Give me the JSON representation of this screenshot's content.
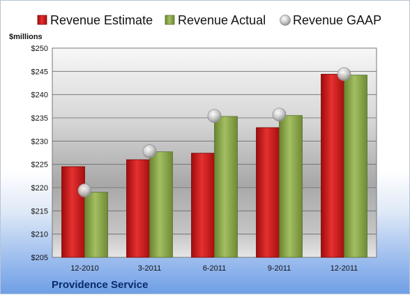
{
  "chart_data": {
    "type": "bar",
    "title": "",
    "ylabel": "$millions",
    "company": "Providence Service",
    "categories": [
      "12-2010",
      "3-2011",
      "6-2011",
      "9-2011",
      "12-2011"
    ],
    "ylim": [
      205,
      250
    ],
    "yticks": [
      "$205",
      "$210",
      "$215",
      "$220",
      "$225",
      "$230",
      "$235",
      "$240",
      "$245",
      "$250"
    ],
    "grid": true,
    "legend_position": "top",
    "series": [
      {
        "name": "Revenue Estimate",
        "kind": "bar",
        "color": "#d11a1a",
        "values": [
          224.5,
          226.0,
          227.4,
          232.9,
          244.4
        ]
      },
      {
        "name": "Revenue Actual",
        "kind": "bar",
        "color": "#8faa4e",
        "values": [
          219.0,
          227.7,
          235.3,
          235.5,
          244.2
        ]
      },
      {
        "name": "Revenue GAAP",
        "kind": "marker",
        "color": "#c9c9c9",
        "values": [
          219.4,
          227.8,
          235.4,
          235.7,
          244.4
        ]
      }
    ]
  }
}
